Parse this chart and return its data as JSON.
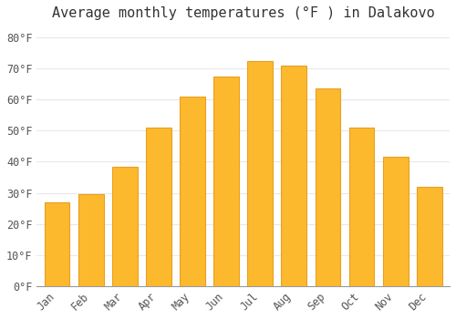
{
  "title": "Average monthly temperatures (°F ) in Dalakovo",
  "months": [
    "Jan",
    "Feb",
    "Mar",
    "Apr",
    "May",
    "Jun",
    "Jul",
    "Aug",
    "Sep",
    "Oct",
    "Nov",
    "Dec"
  ],
  "values": [
    27,
    29.5,
    38.5,
    51,
    61,
    67.5,
    72.5,
    71,
    63.5,
    51,
    41.5,
    32
  ],
  "bar_color": "#FDB92E",
  "bar_edge_color": "#E8A020",
  "background_color": "#FFFFFF",
  "grid_color": "#E8E8E8",
  "text_color": "#555555",
  "yticks": [
    0,
    10,
    20,
    30,
    40,
    50,
    60,
    70,
    80
  ],
  "ylim": [
    0,
    84
  ],
  "title_fontsize": 11,
  "tick_fontsize": 8.5
}
